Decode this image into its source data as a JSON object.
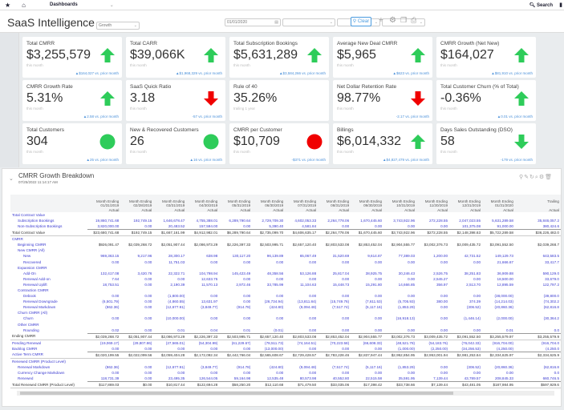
{
  "topbar": {
    "nav_label": "Dashboards",
    "search_label": "Search"
  },
  "header": {
    "title": "SaaS Intelligence",
    "view_select": "Growth",
    "date_value": "01/01/2020",
    "clear_label": "Clear"
  },
  "colors": {
    "up": "#2ecc5a",
    "down": "#f00000",
    "link": "#3a3ad0",
    "delta": "#4a90d9"
  },
  "cards": [
    {
      "title": "Total CMRR",
      "value": "$3,255,579",
      "sub": "this month",
      "delta": "▲$164,027 vs. prior month",
      "indicator": "up-arrow"
    },
    {
      "title": "Total CARR",
      "value": "$39,066K",
      "sub": "this month",
      "delta": "▲$1,968,329 vs. prior month",
      "indicator": "up-arrow"
    },
    {
      "title": "Total Subscription Bookings",
      "value": "$5,631,289",
      "sub": "this month",
      "delta": "▲$3,584,266 vs. prior month",
      "indicator": "up-arrow"
    },
    {
      "title": "Average New Deal CMRR",
      "value": "$5,965",
      "sub": "this month",
      "delta": "▲$623 vs. prior month",
      "indicator": "up-arrow"
    },
    {
      "title": "CMRR Growth (Net New)",
      "value": "$164,027",
      "sub": "this month",
      "delta": "▲$81,910 vs. prior month",
      "indicator": "up-arrow"
    },
    {
      "title": "CMRR Growth Rate",
      "value": "5.31%",
      "sub": "this month",
      "delta": "▲2.58 vs. prior month",
      "indicator": "up-arrow"
    },
    {
      "title": "SaaS Quick Ratio",
      "value": "3.18",
      "sub": "this month",
      "delta": "-57 vs. prior month",
      "indicator": "down-arrow"
    },
    {
      "title": "Rule of 40",
      "value": "35.26%",
      "sub": "trailing 1 year",
      "delta": "",
      "indicator": "none"
    },
    {
      "title": "Net Dollar Retention Rate",
      "value": "98.77%",
      "sub": "this month",
      "delta": "-2.17 vs. prior month",
      "indicator": "down-arrow"
    },
    {
      "title": "Total Customer Churn (% of Total)",
      "value": "-0.36%",
      "sub": "this month",
      "delta": "▲0.01 vs. prior month",
      "indicator": "up-arrow"
    },
    {
      "title": "Total Customers",
      "value": "304",
      "sub": "this month",
      "delta": "▲25 vs. prior month",
      "indicator": "green-circle"
    },
    {
      "title": "New & Recovered Customers",
      "value": "26",
      "sub": "this month",
      "delta": "▲16 vs. prior month",
      "indicator": "green-circle"
    },
    {
      "title": "CMRR per Customer",
      "value": "$10,709",
      "sub": "this month",
      "delta": "-$371 vs. prior month",
      "indicator": "red-circle"
    },
    {
      "title": "Billings",
      "value": "$6,014,332",
      "sub": "this month",
      "delta": "▲$4,827,479 vs. prior month",
      "indicator": "up-arrow"
    },
    {
      "title": "Days Sales Outstanding (DSO)",
      "value": "58",
      "sub": "this month",
      "delta": "-179 vs. prior month",
      "indicator": "down-green-arrow"
    }
  ],
  "report": {
    "title": "CMRR Growth Breakdown",
    "timestamp": "07/25/2022 11:14:17 AM",
    "columns": [
      [
        "Month Ending",
        "01/31/2019",
        "Actual"
      ],
      [
        "Month Ending",
        "02/28/2019",
        "Actual"
      ],
      [
        "Month Ending",
        "03/31/2019",
        "Actual"
      ],
      [
        "Month Ending",
        "04/30/2019",
        "Actual"
      ],
      [
        "Month Ending",
        "05/31/2019",
        "Actual"
      ],
      [
        "Month Ending",
        "06/30/2019",
        "Actual"
      ],
      [
        "Month Ending",
        "07/31/2019",
        "Actual"
      ],
      [
        "Month Ending",
        "08/31/2019",
        "Actual"
      ],
      [
        "Month Ending",
        "09/30/2019",
        "Actual"
      ],
      [
        "Month Ending",
        "10/31/2019",
        "Actual"
      ],
      [
        "Month Ending",
        "11/30/2019",
        "Actual"
      ],
      [
        "Month Ending",
        "12/31/2019",
        "Actual"
      ],
      [
        "Month Ending",
        "01/31/2020",
        "Actual"
      ],
      [
        "Trailing",
        "",
        "Actual"
      ]
    ],
    "rows": [
      {
        "label": "Total Contract Value",
        "type": "sec",
        "indent": 0
      },
      {
        "label": "Subscription Bookings",
        "type": "item",
        "indent": 1,
        "values": [
          "19,860,741.68",
          "192,749.15",
          "1,646,678.47",
          "4,755,388.01",
          "6,289,790.64",
          "2,729,709.30",
          "4,602,053.33",
          "2,264,778.06",
          "1,670,445.60",
          "3,743,922.96",
          "272,228.55",
          "2,047,023.55",
          "5,631,289.58",
          "35,846,057.2"
        ]
      },
      {
        "label": "Non-Subscription Bookings",
        "type": "item",
        "indent": 1,
        "values": [
          "3,820,000.00",
          "0.00",
          "20,483.52",
          "157,594.00",
          "0.00",
          "5,390.40",
          "4,581.84",
          "0.00",
          "0.00",
          "0.00",
          "0.00",
          "101,375.08",
          "91,000.00",
          "380,424.6"
        ]
      },
      {
        "label": "Total Contract Value",
        "type": "total",
        "indent": 0,
        "values": [
          "$23,680,741.68",
          "$192,749.15",
          "$1,667,161.99",
          "$4,912,982.01",
          "$6,289,790.64",
          "$2,735,099.70",
          "$4,606,635.17",
          "$2,264,778.06",
          "$1,670,445.60",
          "$3,743,922.96",
          "$272,228.55",
          "$2,148,398.63",
          "$5,722,289.58",
          "$36,226,482.0"
        ]
      },
      {
        "label": "CMRR",
        "type": "sec",
        "indent": 0
      },
      {
        "label": "Beginning CMRR",
        "type": "item",
        "indent": 1,
        "plain": true,
        "values": [
          "$926,091.47",
          "$2,039,268.72",
          "$2,051,907.44",
          "$2,086,973.29",
          "$2,226,397.33",
          "$2,503,995.71",
          "$2,657,120.40",
          "$2,803,533.08",
          "$2,853,452.04",
          "$2,904,555.77",
          "$3,002,376.73",
          "$3,009,435.72",
          "$3,091,552.50",
          "$2,039,268.7"
        ]
      },
      {
        "label": "New CMRR (All)",
        "type": "sec",
        "indent": 1
      },
      {
        "label": "New",
        "type": "item",
        "indent": 2,
        "values": [
          "969,363.15",
          "9,217.96",
          "28,300.17",
          "638.98",
          "130,117.20",
          "96,139.89",
          "65,067.49",
          "31,520.69",
          "9,614.87",
          "77,389.03",
          "1,200.00",
          "42,731.52",
          "149,129.73",
          "643,583.5"
        ]
      },
      {
        "label": "Recovered",
        "type": "item",
        "indent": 2,
        "values": [
          "0.00",
          "0.00",
          "11,751.03",
          "0.00",
          "0.00",
          "0.00",
          "0.00",
          "0.00",
          "0.00",
          "0.00",
          "0.00",
          "0.00",
          "21,666.67",
          "33,417.7"
        ]
      },
      {
        "label": "Expansion CMRR",
        "type": "sec",
        "indent": 1
      },
      {
        "label": "Add-On",
        "type": "item",
        "indent": 2,
        "values": [
          "132,417.08",
          "3,420.76",
          "22,322.71",
          "104,798.94",
          "145,423.49",
          "48,358.56",
          "53,126.88",
          "25,817.04",
          "38,925.75",
          "30,246.43",
          "2,526.75",
          "38,251.83",
          "36,909.88",
          "590,129.0"
        ]
      },
      {
        "label": "Renewal Add-on",
        "type": "item",
        "indent": 2,
        "values": [
          "7.64",
          "0.00",
          "0.00",
          "12,633.75",
          "0.00",
          "0.00",
          "0.00",
          "0.00",
          "0.00",
          "0.00",
          "2,545.27",
          "0.00",
          "18,500.00",
          "33,679.0"
        ]
      },
      {
        "label": "Renewal Uplift",
        "type": "item",
        "indent": 2,
        "values": [
          "18,753.51",
          "0.00",
          "2,190.39",
          "11,570.13",
          "2,972.46",
          "33,785.99",
          "11,104.63",
          "15,448.73",
          "15,291.80",
          "14,666.85",
          "356.97",
          "2,513.70",
          "12,895.59",
          "122,797.2"
        ]
      },
      {
        "label": "Contraction CMRR",
        "type": "sec",
        "indent": 1
      },
      {
        "label": "Debook",
        "type": "item",
        "indent": 2,
        "values": [
          "0.00",
          "0.00",
          "(1,800.00)",
          "0.00",
          "0.00",
          "0.00",
          "0.00",
          "0.00",
          "0.00",
          "0.00",
          "0.00",
          "0.00",
          "(38,000.00)",
          "(39,800.0"
        ]
      },
      {
        "label": "Renewal Downgrade",
        "type": "item",
        "indent": 2,
        "values": [
          "(6,501.79)",
          "0.00",
          "(4,860.55)",
          "13,631.97",
          "0.00",
          "(26,734.94)",
          "(13,811.84)",
          "(15,749.76)",
          "(7,611.53)",
          "(5,705.93)",
          "380.00",
          "374.39",
          "(14,214.03)",
          "(74,302.2"
        ]
      },
      {
        "label": "Renewal Markdown",
        "type": "item",
        "indent": 2,
        "values": [
          "(862.36)",
          "0.00",
          "(12,677.91)",
          "(3,849.77)",
          "(914.78)",
          "(424.80)",
          "(9,094.48)",
          "(7,517.74)",
          "(5,117.16)",
          "(1,853.29)",
          "0.00",
          "(306.52)",
          "(20,860.36)",
          "(62,816.8"
        ]
      },
      {
        "label": "Churn CMRR (All)",
        "type": "sec",
        "indent": 1
      },
      {
        "label": "Churn",
        "type": "item",
        "indent": 2,
        "values": [
          "0.00",
          "0.00",
          "(10,000.00)",
          "0.00",
          "0.00",
          "0.00",
          "0.00",
          "0.00",
          "0.00",
          "(16,918.13)",
          "0.00",
          "(1,446.14)",
          "(2,000.00)",
          "(30,364.2"
        ]
      },
      {
        "label": "Other CMRR",
        "type": "sec",
        "indent": 1
      },
      {
        "label": "Rounding",
        "type": "item",
        "indent": 2,
        "values": [
          "0.02",
          "0.00",
          "0.01",
          "0.04",
          "0.01",
          "(0.01)",
          "0.00",
          "0.00",
          "0.00",
          "0.00",
          "0.00",
          "0.00",
          "0.01",
          "0.0"
        ]
      },
      {
        "label": "Ending CMRR",
        "type": "total",
        "indent": 0,
        "values": [
          "$2,039,268.72",
          "$2,051,907.44",
          "$2,086,973.29",
          "$2,226,397.33",
          "$2,503,995.71",
          "$2,657,120.40",
          "$2,803,533.08",
          "$2,853,452.04",
          "$2,904,555.77",
          "$3,002,376.73",
          "$3,009,435.72",
          "$3,091,552.50",
          "$3,255,579.97",
          "$3,255,579.9"
        ]
      },
      {
        "label": "Pending Renewal",
        "type": "item",
        "indent": 0,
        "values": [
          "(19,069.17)",
          "(29,807.86)",
          "(27,565.01)",
          "(54,304.99)",
          "(61,229.67)",
          "(78,511.73)",
          "(74,164.51)",
          "(70,223.58)",
          "(66,608.33)",
          "(48,521.78)",
          "(54,183.76)",
          "(76,042.33)",
          "(916,704.00)",
          "(916,704.0"
        ]
      },
      {
        "label": "Backlog CMRR",
        "type": "item",
        "indent": 0,
        "values": [
          "0.00",
          "0.00",
          "0.00",
          "0.00",
          "0.00",
          "(13,000.00)",
          "0.00",
          "0.00",
          "0.00",
          "(1,000.00)",
          "(2,250.00)",
          "(34,256.53)",
          "(4,250.00)",
          "(4,250.0"
        ]
      },
      {
        "label": "Active Term CMRR",
        "type": "total",
        "indent": 0,
        "link": true,
        "values": [
          "$2,020,199.55",
          "$2,022,099.56",
          "$2,059,404.28",
          "$2,172,092.34",
          "$2,442,766.04",
          "$2,565,608.67",
          "$2,729,428.57",
          "$2,783,228.46",
          "$2,837,947.44",
          "$2,952,854.95",
          "$2,953,001.94",
          "$2,981,253.64",
          "$2,334,625.97",
          "$2,334,625.9"
        ]
      },
      {
        "label": "Renewed CMRR (Product Level)",
        "type": "sec",
        "indent": 0
      },
      {
        "label": "Renewal Markdown",
        "type": "item",
        "indent": 1,
        "values": [
          "(862.36)",
          "0.00",
          "(12,677.91)",
          "(3,849.77)",
          "(914.78)",
          "(424.80)",
          "(9,094.48)",
          "(7,517.74)",
          "(5,117.16)",
          "(1,853.29)",
          "0.00",
          "(306.52)",
          "(20,860.36)",
          "(62,816.8"
        ]
      },
      {
        "label": "Currency Change Markdown",
        "type": "item",
        "indent": 1,
        "values": [
          "0.00",
          "0.00",
          "0.00",
          "0.00",
          "0.00",
          "0.00",
          "0.00",
          "0.00",
          "0.00",
          "0.00",
          "0.00",
          "0.00",
          "0.00",
          "0.0"
        ]
      },
      {
        "label": "Renewed",
        "type": "item",
        "indent": 1,
        "values": [
          "118,731.39",
          "0.00",
          "23,495.35",
          "126,544.05",
          "59,164.98",
          "12,535.48",
          "80,573.98",
          "40,552.80",
          "22,515.58",
          "35,591.95",
          "7,139.44",
          "43,789.57",
          "208,845.33",
          "660,746.5"
        ]
      },
      {
        "label": "Total Renewed CMRR (Product Level)",
        "type": "total",
        "indent": 0,
        "values": [
          "$117,869.03",
          "$0.00",
          "$10,817.44",
          "$122,694.28",
          "$58,250.20",
          "$12,110.68",
          "$71,479.50",
          "$33,035.06",
          "$17,398.42",
          "$33,738.66",
          "$7,139.44",
          "$43,481.05",
          "$187,984.95",
          "$597,929.6"
        ]
      },
      {
        "label": "CMRR Growth (Net New)",
        "type": "total",
        "indent": 0,
        "link": true,
        "values": [
          "$1,113,177.25",
          "$12,638.72",
          "$35,065.85",
          "$139,424.04",
          "$277,598.38",
          "$153,124.69",
          "$146,412.68",
          "$49,918.96",
          "$51,103.73",
          "$97,820.96",
          "$7,058.99",
          "$82,116.78",
          "$164,027.47",
          "$1,216,311.3"
        ]
      },
      {
        "label": "CMRR Growth Rate",
        "type": "total",
        "indent": 0,
        "link": true,
        "values": [
          "120.20 %",
          "0.62 %",
          "1.71 %",
          "6.66 %",
          "12.47 %",
          "6.12 %",
          "5.51 %",
          "1.78 %",
          "1.79 %",
          "3.37 %",
          "0.24 %",
          "2.73 %",
          "5.31 %",
          "59.64 %"
        ]
      },
      {
        "label": "CMRR per Customer",
        "type": "total",
        "indent": 0,
        "link": true,
        "values": [
          "$10,404.43",
          "$10,311.09",
          "$9,937.97",
          "$10,551.65",
          "$11,030.82",
          "$11,552.70",
          "$11,469.89",
          "$11,459.60",
          "$11,480.46",
          "$11,038.15",
          "$11,064.10",
          "$11,080.83",
          "$10,709.14",
          "$10,709.1"
        ]
      }
    ]
  }
}
